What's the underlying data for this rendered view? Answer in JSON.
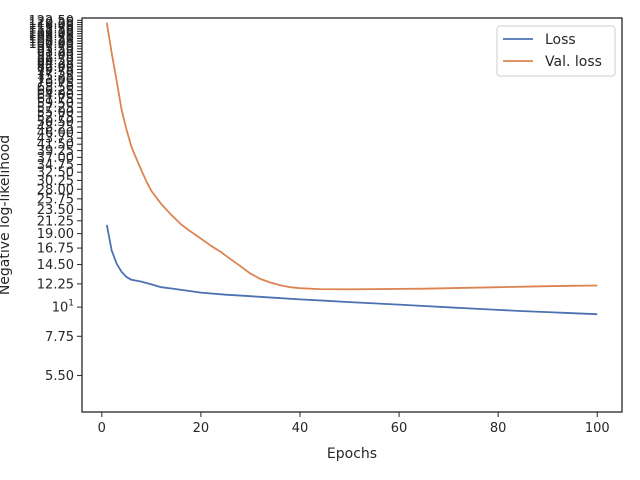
{
  "chart_data": {
    "type": "line",
    "xlabel": "Epochs",
    "ylabel": "Negative log-likelihood",
    "xlim": [
      -4,
      105
    ],
    "ylim": [
      4.0,
      125.0
    ],
    "yscale": "log",
    "x_ticks": [
      "0",
      "20",
      "40",
      "60",
      "80",
      "100"
    ],
    "y_ticks": [
      {
        "value": 5.5,
        "label": "5.50"
      },
      {
        "value": 7.75,
        "label": "7.75"
      },
      {
        "value": 10,
        "label": "10",
        "sup": "1"
      },
      {
        "value": 12.25,
        "label": "12.25"
      },
      {
        "value": 14.5,
        "label": "14.50"
      },
      {
        "value": 16.75,
        "label": "16.75"
      },
      {
        "value": 19.0,
        "label": "19.00"
      },
      {
        "value": 21.25,
        "label": "21.25"
      },
      {
        "value": 23.5,
        "label": "23.50"
      },
      {
        "value": 25.75,
        "label": "25.75"
      },
      {
        "value": 28.0,
        "label": "28.00"
      },
      {
        "value": 30.25,
        "label": "30.25"
      },
      {
        "value": 32.5,
        "label": "32.50"
      },
      {
        "value": 34.75,
        "label": "34.75"
      },
      {
        "value": 37.0,
        "label": "37.00"
      },
      {
        "value": 39.25,
        "label": "39.25"
      },
      {
        "value": 41.5,
        "label": "41.50"
      },
      {
        "value": 43.75,
        "label": "43.75"
      },
      {
        "value": 46.0,
        "label": "46.00"
      },
      {
        "value": 48.25,
        "label": "48.25"
      },
      {
        "value": 50.5,
        "label": "50.50"
      },
      {
        "value": 52.75,
        "label": "52.75"
      },
      {
        "value": 55.0,
        "label": "55.00"
      },
      {
        "value": 57.25,
        "label": "57.25"
      },
      {
        "value": 59.5,
        "label": "59.50"
      },
      {
        "value": 61.75,
        "label": "61.75"
      },
      {
        "value": 64.0,
        "label": "64.00"
      },
      {
        "value": 66.25,
        "label": "66.25"
      },
      {
        "value": 68.5,
        "label": "68.50"
      },
      {
        "value": 70.75,
        "label": "70.75"
      },
      {
        "value": 73.0,
        "label": "73.00"
      },
      {
        "value": 75.25,
        "label": "75.25"
      },
      {
        "value": 77.5,
        "label": "77.50"
      },
      {
        "value": 79.75,
        "label": "79.75"
      },
      {
        "value": 82.0,
        "label": "82.00"
      },
      {
        "value": 84.25,
        "label": "84.25"
      },
      {
        "value": 86.5,
        "label": "86.50"
      },
      {
        "value": 88.75,
        "label": "88.75"
      },
      {
        "value": 91.0,
        "label": "91.00"
      },
      {
        "value": 93.25,
        "label": "93.25"
      },
      {
        "value": 95.5,
        "label": "95.50"
      },
      {
        "value": 97.75,
        "label": "97.75"
      },
      {
        "value": 100.0,
        "label": "100.00"
      },
      {
        "value": 102.25,
        "label": "102.25"
      },
      {
        "value": 104.5,
        "label": "104.50"
      },
      {
        "value": 106.75,
        "label": "106.75"
      },
      {
        "value": 109.0,
        "label": "109.00"
      },
      {
        "value": 111.25,
        "label": "111.25"
      },
      {
        "value": 113.5,
        "label": "113.50"
      },
      {
        "value": 115.75,
        "label": "115.75"
      },
      {
        "value": 118.0,
        "label": "118.00"
      },
      {
        "value": 120.25,
        "label": "120.25"
      },
      {
        "value": 122.5,
        "label": "122.50"
      }
    ],
    "legend_position": "upper right",
    "grid": false,
    "series": [
      {
        "name": "Loss",
        "color": "#4c72b0",
        "points": [
          [
            1,
            20.5
          ],
          [
            2,
            16.4
          ],
          [
            3,
            14.6
          ],
          [
            4,
            13.6
          ],
          [
            5,
            13.0
          ],
          [
            6,
            12.7
          ],
          [
            8,
            12.5
          ],
          [
            10,
            12.2
          ],
          [
            12,
            11.9
          ],
          [
            15,
            11.7
          ],
          [
            20,
            11.35
          ],
          [
            25,
            11.15
          ],
          [
            30,
            11.0
          ],
          [
            35,
            10.85
          ],
          [
            40,
            10.7
          ],
          [
            45,
            10.58
          ],
          [
            50,
            10.45
          ],
          [
            55,
            10.33
          ],
          [
            60,
            10.22
          ],
          [
            65,
            10.1
          ],
          [
            70,
            9.98
          ],
          [
            75,
            9.87
          ],
          [
            80,
            9.76
          ],
          [
            85,
            9.66
          ],
          [
            90,
            9.57
          ],
          [
            95,
            9.48
          ],
          [
            100,
            9.4
          ]
        ]
      },
      {
        "name": "Val. loss",
        "color": "#dd8452",
        "points": [
          [
            1,
            120.0
          ],
          [
            2,
            92.0
          ],
          [
            3,
            72.0
          ],
          [
            4,
            56.0
          ],
          [
            5,
            47.0
          ],
          [
            6,
            40.5
          ],
          [
            7,
            36.5
          ],
          [
            8,
            33.0
          ],
          [
            9,
            30.0
          ],
          [
            10,
            27.6
          ],
          [
            12,
            24.6
          ],
          [
            14,
            22.4
          ],
          [
            16,
            20.6
          ],
          [
            18,
            19.3
          ],
          [
            20,
            18.2
          ],
          [
            22,
            17.1
          ],
          [
            24,
            16.2
          ],
          [
            26,
            15.2
          ],
          [
            28,
            14.3
          ],
          [
            30,
            13.4
          ],
          [
            32,
            12.8
          ],
          [
            34,
            12.4
          ],
          [
            36,
            12.1
          ],
          [
            38,
            11.9
          ],
          [
            40,
            11.8
          ],
          [
            44,
            11.7
          ],
          [
            50,
            11.68
          ],
          [
            55,
            11.7
          ],
          [
            60,
            11.72
          ],
          [
            65,
            11.75
          ],
          [
            70,
            11.8
          ],
          [
            75,
            11.85
          ],
          [
            80,
            11.9
          ],
          [
            85,
            11.95
          ],
          [
            90,
            12.0
          ],
          [
            95,
            12.05
          ],
          [
            100,
            12.08
          ]
        ]
      }
    ]
  }
}
